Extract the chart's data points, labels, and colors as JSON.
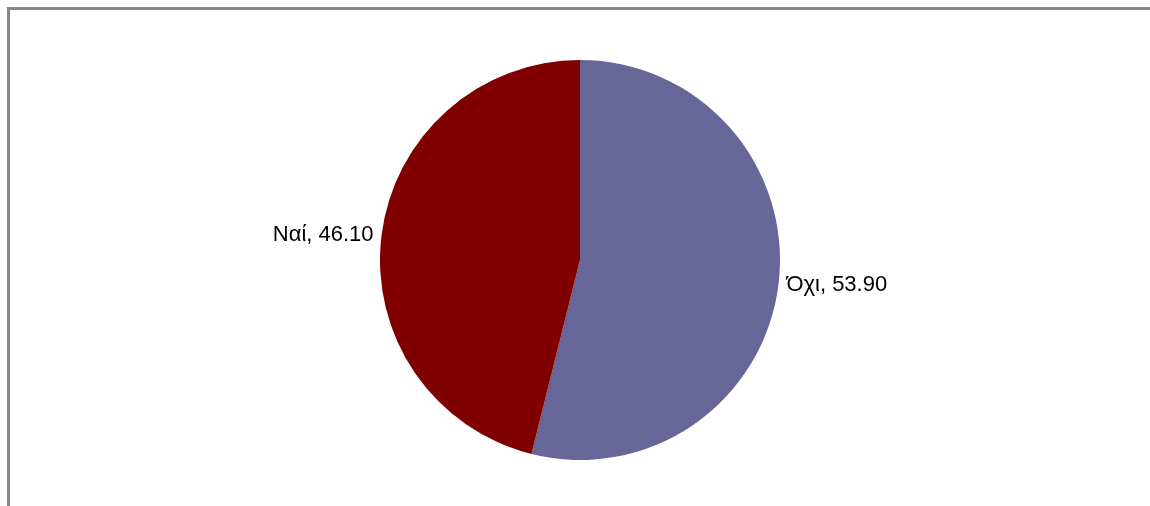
{
  "chart_data": {
    "type": "pie",
    "categories": [
      "Όχι",
      "Ναί"
    ],
    "values": [
      53.9,
      46.1
    ],
    "value_labels": [
      "53.90",
      "46.10"
    ],
    "colors": [
      "#666699",
      "#800000"
    ],
    "legend": false
  }
}
